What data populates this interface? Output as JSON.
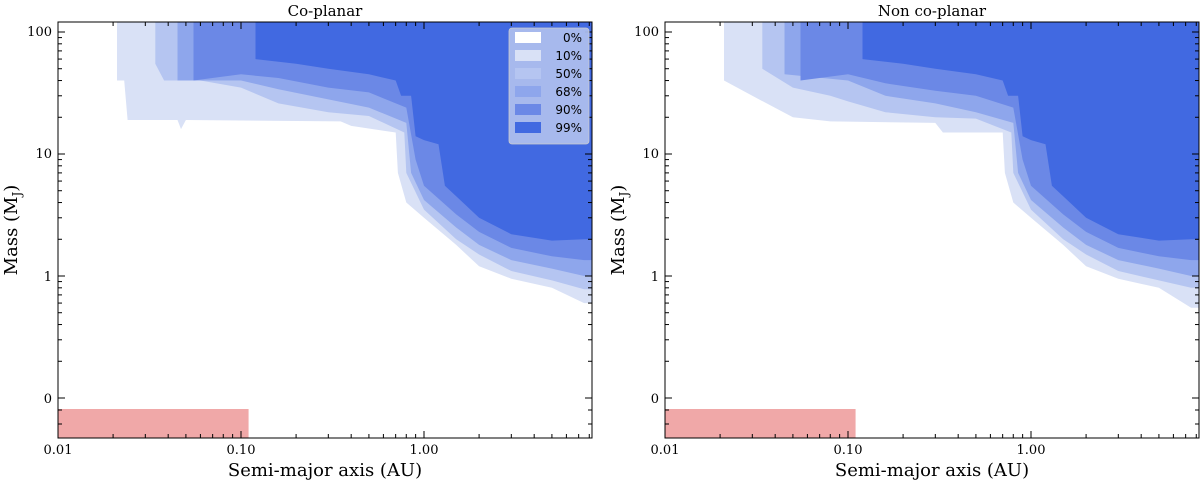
{
  "chart_data": [
    {
      "type": "area",
      "title": "Co-planar",
      "xlabel": "Semi-major axis (AU)",
      "ylabel": "Mass (M",
      "ylabel_sub": "J",
      "ylabel_close": ")",
      "x_ticks": [
        0.01,
        0.1,
        1.0
      ],
      "x_tick_labels": [
        "0.01",
        "0.10",
        "1.00"
      ],
      "y_tick_labels": [
        "100",
        "10",
        "1",
        "0"
      ],
      "legend": {
        "position": "top-right",
        "entries": [
          "0%",
          "10%",
          "50%",
          "68%",
          "90%",
          "99%"
        ]
      },
      "highlight": {
        "x_range": [
          0.01,
          0.11
        ],
        "color": "#f0a8a8"
      },
      "contours": [
        {
          "level": "10%",
          "boundary": [
            [
              0.021,
              100
            ],
            [
              0.021,
              40
            ],
            [
              0.023,
              40
            ],
            [
              0.024,
              19
            ],
            [
              0.045,
              19
            ],
            [
              0.047,
              16
            ],
            [
              0.05,
              19
            ],
            [
              0.35,
              18.5
            ],
            [
              0.4,
              17
            ],
            [
              0.7,
              15
            ],
            [
              0.72,
              7
            ],
            [
              0.8,
              4
            ],
            [
              1.0,
              3.0
            ],
            [
              1.5,
              1.8
            ],
            [
              2.0,
              1.2
            ],
            [
              3.0,
              0.95
            ],
            [
              5.0,
              0.8
            ],
            [
              7.5,
              0.6
            ]
          ]
        },
        {
          "level": "50%",
          "boundary": [
            [
              0.034,
              100
            ],
            [
              0.034,
              55
            ],
            [
              0.038,
              40
            ],
            [
              0.06,
              40
            ],
            [
              0.1,
              35
            ],
            [
              0.16,
              26
            ],
            [
              0.3,
              22
            ],
            [
              0.5,
              20.5
            ],
            [
              0.78,
              15
            ],
            [
              0.8,
              7
            ],
            [
              1.0,
              3.5
            ],
            [
              1.5,
              2.0
            ],
            [
              2.0,
              1.5
            ],
            [
              3.0,
              1.1
            ],
            [
              5.0,
              0.92
            ],
            [
              7.5,
              0.78
            ]
          ]
        },
        {
          "level": "68%",
          "boundary": [
            [
              0.045,
              100
            ],
            [
              0.045,
              40
            ],
            [
              0.1,
              40
            ],
            [
              0.16,
              34
            ],
            [
              0.3,
              28
            ],
            [
              0.5,
              24
            ],
            [
              0.8,
              18
            ],
            [
              0.85,
              7
            ],
            [
              1.0,
              4.2
            ],
            [
              1.5,
              2.5
            ],
            [
              2.0,
              1.8
            ],
            [
              3.0,
              1.35
            ],
            [
              5.0,
              1.15
            ],
            [
              7.5,
              1.0
            ]
          ]
        },
        {
          "level": "90%",
          "boundary": [
            [
              0.055,
              100
            ],
            [
              0.055,
              40
            ],
            [
              0.1,
              45
            ],
            [
              0.16,
              42
            ],
            [
              0.3,
              35
            ],
            [
              0.5,
              32
            ],
            [
              0.8,
              24
            ],
            [
              0.9,
              9
            ],
            [
              1.0,
              5.5
            ],
            [
              1.5,
              3.2
            ],
            [
              2.0,
              2.3
            ],
            [
              3.0,
              1.7
            ],
            [
              5.0,
              1.45
            ],
            [
              7.5,
              1.35
            ]
          ]
        },
        {
          "level": "99%",
          "boundary": [
            [
              0.12,
              100
            ],
            [
              0.12,
              60
            ],
            [
              0.2,
              55
            ],
            [
              0.3,
              50
            ],
            [
              0.5,
              45
            ],
            [
              0.7,
              40
            ],
            [
              0.75,
              30
            ],
            [
              0.85,
              30
            ],
            [
              0.9,
              14
            ],
            [
              1.0,
              13
            ],
            [
              1.2,
              12
            ],
            [
              1.3,
              5.5
            ],
            [
              1.5,
              4.5
            ],
            [
              2.0,
              3.0
            ],
            [
              3.0,
              2.2
            ],
            [
              5.0,
              1.95
            ],
            [
              7.5,
              2.0
            ]
          ]
        }
      ]
    },
    {
      "type": "area",
      "title": "Non co-planar",
      "xlabel": "Semi-major axis (AU)",
      "ylabel": "Mass (M",
      "ylabel_sub": "J",
      "ylabel_close": ")",
      "x_ticks": [
        0.01,
        0.1,
        1.0
      ],
      "x_tick_labels": [
        "0.01",
        "0.10",
        "1.00"
      ],
      "y_tick_labels": [
        "100",
        "10",
        "1",
        "0"
      ],
      "highlight": {
        "x_range": [
          0.01,
          0.11
        ],
        "color": "#f0a8a8"
      },
      "contours": [
        {
          "level": "10%",
          "boundary": [
            [
              0.021,
              100
            ],
            [
              0.021,
              40
            ],
            [
              0.03,
              30
            ],
            [
              0.05,
              20
            ],
            [
              0.08,
              18.5
            ],
            [
              0.3,
              18
            ],
            [
              0.33,
              15
            ],
            [
              0.7,
              15
            ],
            [
              0.72,
              7
            ],
            [
              0.8,
              4
            ],
            [
              1.0,
              3.0
            ],
            [
              1.5,
              1.8
            ],
            [
              2.0,
              1.2
            ],
            [
              3.0,
              0.95
            ],
            [
              5.0,
              0.8
            ],
            [
              7.5,
              0.55
            ]
          ]
        },
        {
          "level": "50%",
          "boundary": [
            [
              0.034,
              100
            ],
            [
              0.034,
              50
            ],
            [
              0.05,
              35
            ],
            [
              0.08,
              30
            ],
            [
              0.1,
              27
            ],
            [
              0.16,
              22
            ],
            [
              0.3,
              20
            ],
            [
              0.5,
              19.5
            ],
            [
              0.78,
              15
            ],
            [
              0.8,
              7
            ],
            [
              1.0,
              3.5
            ],
            [
              1.5,
              2.0
            ],
            [
              2.0,
              1.5
            ],
            [
              3.0,
              1.1
            ],
            [
              5.0,
              0.92
            ],
            [
              7.5,
              0.8
            ]
          ]
        },
        {
          "level": "68%",
          "boundary": [
            [
              0.045,
              100
            ],
            [
              0.045,
              45
            ],
            [
              0.1,
              40
            ],
            [
              0.16,
              30
            ],
            [
              0.3,
              26
            ],
            [
              0.5,
              22
            ],
            [
              0.8,
              18
            ],
            [
              0.85,
              7
            ],
            [
              1.0,
              4.2
            ],
            [
              1.5,
              2.5
            ],
            [
              2.0,
              1.8
            ],
            [
              3.0,
              1.35
            ],
            [
              5.0,
              1.15
            ],
            [
              7.5,
              1.0
            ]
          ]
        },
        {
          "level": "90%",
          "boundary": [
            [
              0.055,
              100
            ],
            [
              0.055,
              40
            ],
            [
              0.1,
              45
            ],
            [
              0.16,
              38
            ],
            [
              0.3,
              33
            ],
            [
              0.5,
              30
            ],
            [
              0.8,
              24
            ],
            [
              0.9,
              9
            ],
            [
              1.0,
              5.5
            ],
            [
              1.5,
              3.2
            ],
            [
              2.0,
              2.3
            ],
            [
              3.0,
              1.7
            ],
            [
              5.0,
              1.45
            ],
            [
              7.5,
              1.35
            ]
          ]
        },
        {
          "level": "99%",
          "boundary": [
            [
              0.12,
              100
            ],
            [
              0.12,
              60
            ],
            [
              0.2,
              55
            ],
            [
              0.3,
              50
            ],
            [
              0.5,
              45
            ],
            [
              0.7,
              40
            ],
            [
              0.75,
              30
            ],
            [
              0.85,
              30
            ],
            [
              0.9,
              14
            ],
            [
              1.0,
              13
            ],
            [
              1.2,
              12
            ],
            [
              1.3,
              5.5
            ],
            [
              1.5,
              4.5
            ],
            [
              2.0,
              3.0
            ],
            [
              3.0,
              2.2
            ],
            [
              5.0,
              1.95
            ],
            [
              7.5,
              2.0
            ]
          ]
        }
      ]
    }
  ],
  "colors": {
    "10%": "#d9e1f6",
    "50%": "#b5c5f1",
    "68%": "#8ea6ec",
    "90%": "#6b88e6",
    "99%": "#4169e1",
    "legend_box": "#b0c0ee",
    "highlight": "#f0a8a8"
  }
}
